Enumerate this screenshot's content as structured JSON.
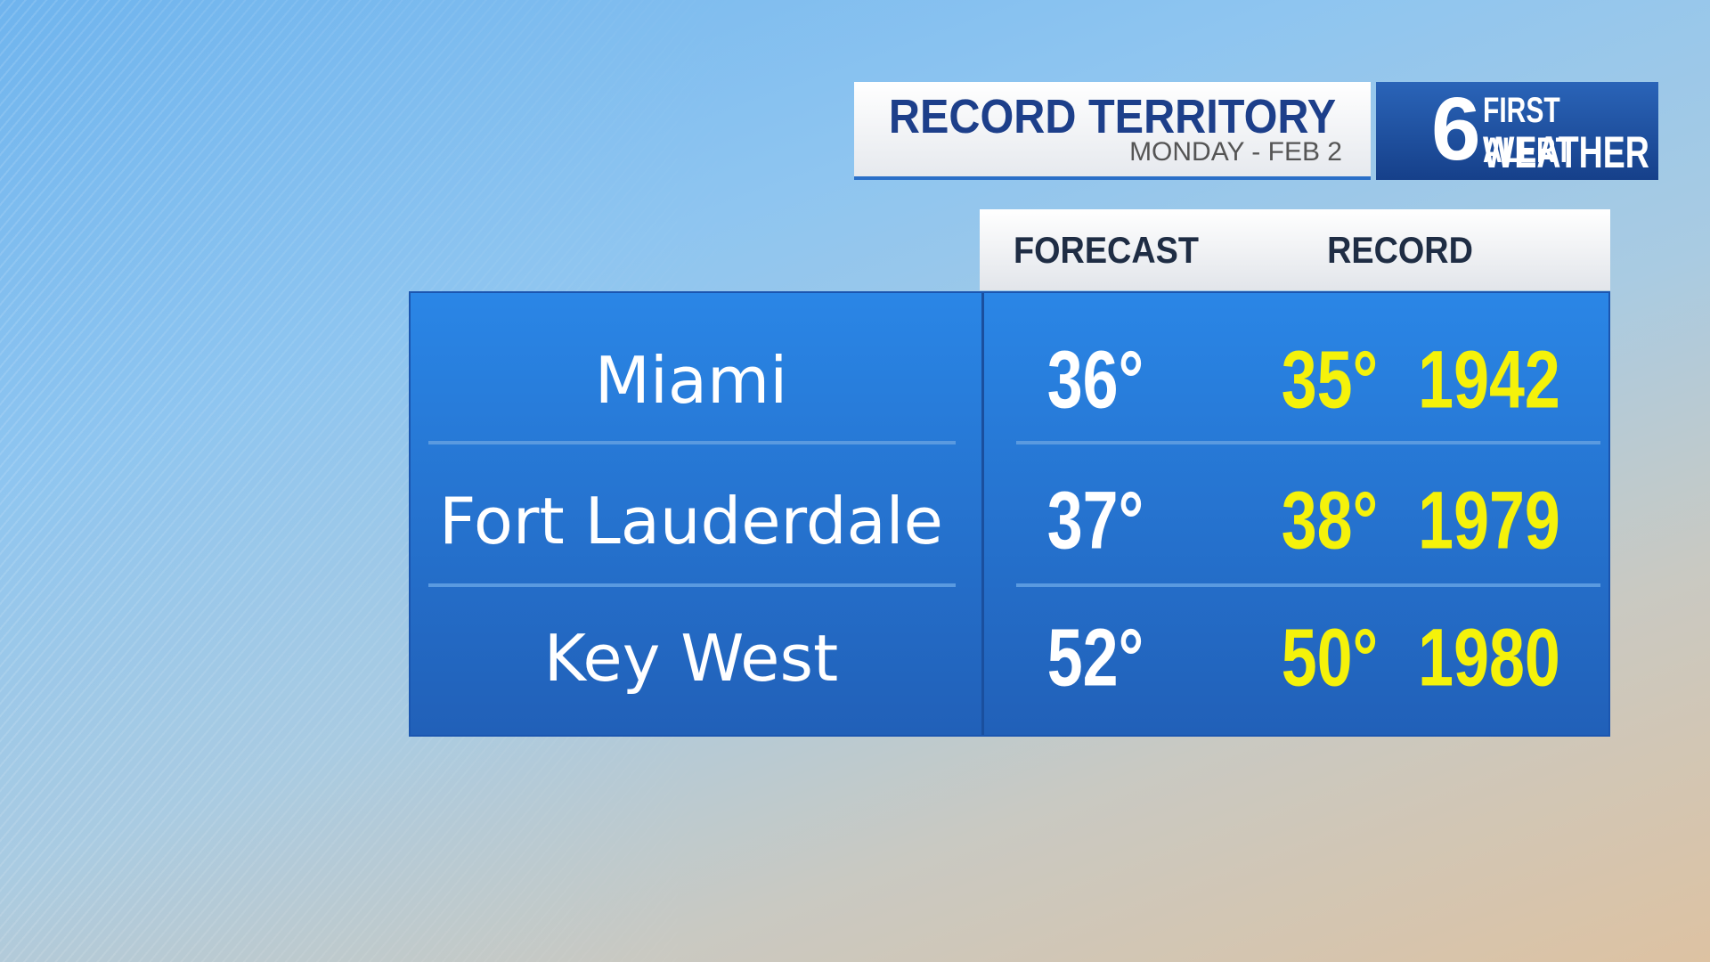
{
  "header": {
    "title": "RECORD TERRITORY",
    "subtitle": "MONDAY - FEB 2"
  },
  "logo": {
    "number": "6",
    "line1": "FIRST ALERT",
    "line2": "WEATHER"
  },
  "table": {
    "columns": [
      "FORECAST",
      "RECORD"
    ],
    "rows": [
      [
        "Miami",
        "36°",
        "35°",
        "1942"
      ],
      [
        "Fort Lauderdale",
        "37°",
        "38°",
        "1979"
      ],
      [
        "Key West",
        "52°",
        "50°",
        "1980"
      ]
    ]
  }
}
